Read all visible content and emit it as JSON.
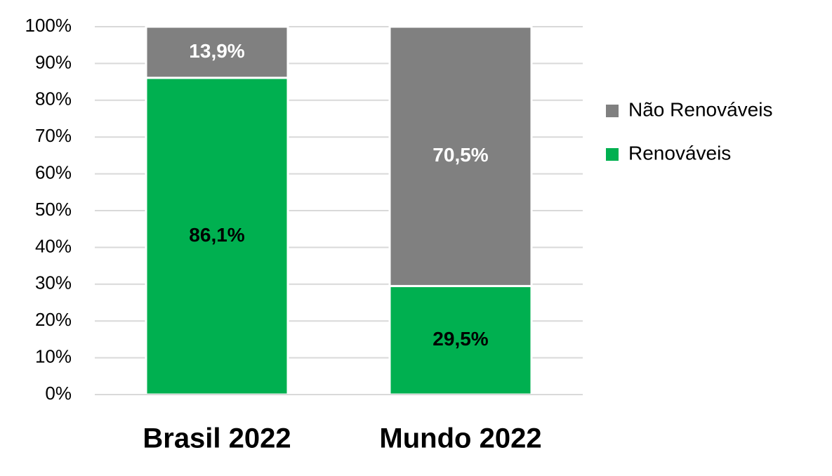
{
  "chart_data": {
    "type": "stacked_bar",
    "categories": [
      "Brasil 2022",
      "Mundo 2022"
    ],
    "series": [
      {
        "name": "Renováveis",
        "color": "#00b050",
        "label_color": "#000000",
        "values": [
          86.1,
          29.5
        ],
        "value_labels": [
          "86,1%",
          "29,5%"
        ]
      },
      {
        "name": "Não Renováveis",
        "color": "#808080",
        "label_color": "#ffffff",
        "values": [
          13.9,
          70.5
        ],
        "value_labels": [
          "13,9%",
          "70,5%"
        ]
      }
    ],
    "ylim": [
      0,
      100
    ],
    "yticks": [
      {
        "value": 0,
        "label": "0%"
      },
      {
        "value": 10,
        "label": "10%"
      },
      {
        "value": 20,
        "label": "20%"
      },
      {
        "value": 30,
        "label": "30%"
      },
      {
        "value": 40,
        "label": "40%"
      },
      {
        "value": 50,
        "label": "50%"
      },
      {
        "value": 60,
        "label": "60%"
      },
      {
        "value": 70,
        "label": "70%"
      },
      {
        "value": 80,
        "label": "80%"
      },
      {
        "value": 90,
        "label": "90%"
      },
      {
        "value": 100,
        "label": "100%"
      }
    ],
    "grid": true,
    "legend": "right"
  }
}
